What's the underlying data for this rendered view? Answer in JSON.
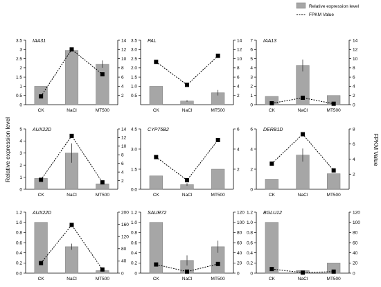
{
  "figure": {
    "left_axis_label": "Relative expression level",
    "right_axis_label": "FPKM Value",
    "legend": [
      {
        "label": "Relative expression level",
        "kind": "bar"
      },
      {
        "label": "FPKM Value",
        "kind": "dotted-line"
      }
    ],
    "colors": {
      "bar": "#a6a6a6",
      "bar_stroke": "#7f7f7f",
      "marker": "#000000",
      "axis": "#000000"
    }
  },
  "chart_data": [
    {
      "type": "bar",
      "title": "IAA31",
      "categories": [
        "CK",
        "NaCl",
        "MT500"
      ],
      "series": [
        {
          "name": "Relative expression level",
          "values": [
            1.0,
            2.95,
            2.2
          ],
          "errors": [
            0,
            0,
            0.2
          ]
        },
        {
          "name": "FPKM Value",
          "axis": "right",
          "values": [
            1.8,
            12.0,
            6.6
          ]
        }
      ],
      "ylim": [
        0,
        3.5
      ],
      "yticks": [
        "0",
        "0.5",
        "1",
        "1.5",
        "2",
        "2.5",
        "3",
        "3.5"
      ],
      "y2lim": [
        0,
        14
      ],
      "y2ticks": [
        "2",
        "4",
        "6",
        "8",
        "10",
        "12",
        "14"
      ]
    },
    {
      "type": "bar",
      "title": "PAL",
      "categories": [
        "CK",
        "NaCl",
        "MT500"
      ],
      "series": [
        {
          "name": "Relative expression level",
          "values": [
            1.0,
            0.2,
            0.65
          ],
          "errors": [
            0,
            0.05,
            0.15
          ]
        },
        {
          "name": "FPKM Value",
          "axis": "right",
          "values": [
            9.3,
            4.3,
            10.6
          ]
        }
      ],
      "ylim": [
        0,
        3.5
      ],
      "yticks": [
        "0.5",
        "1.0",
        "1.5",
        "2.0",
        "2.5",
        "3.0",
        "3.5"
      ],
      "y2lim": [
        0,
        14
      ],
      "y2ticks": [
        "2",
        "4",
        "6",
        "8",
        "10",
        "12",
        "14"
      ]
    },
    {
      "type": "bar",
      "title": "IAA13",
      "categories": [
        "CK",
        "NaCl",
        "MT500"
      ],
      "series": [
        {
          "name": "Relative expression level",
          "values": [
            0.9,
            4.25,
            1.0
          ],
          "errors": [
            0,
            0.65,
            0
          ]
        },
        {
          "name": "FPKM Value",
          "axis": "right",
          "values": [
            0.3,
            1.5,
            0.2
          ]
        }
      ],
      "ylim": [
        0,
        7
      ],
      "yticks": [
        "0",
        "1",
        "2",
        "3",
        "4",
        "5",
        "6",
        "7"
      ],
      "y2lim": [
        0,
        14
      ],
      "y2ticks": [
        "0",
        "2",
        "4",
        "6",
        "8",
        "10",
        "12",
        "14"
      ]
    },
    {
      "type": "bar",
      "title": "AUX22D",
      "categories": [
        "CK",
        "NaCl",
        "MT500"
      ],
      "series": [
        {
          "name": "Relative expression level",
          "values": [
            0.9,
            3.0,
            0.45
          ],
          "errors": [
            0,
            0.8,
            0.05
          ]
        },
        {
          "name": "FPKM Value",
          "axis": "right",
          "values": [
            2.2,
            12.4,
            1.6
          ]
        }
      ],
      "ylim": [
        0,
        5
      ],
      "yticks": [
        "0",
        "1",
        "2",
        "3",
        "4",
        "5"
      ],
      "y2lim": [
        0,
        14
      ],
      "y2ticks": [
        "2",
        "4",
        "6",
        "8",
        "10",
        "12",
        "14"
      ]
    },
    {
      "type": "bar",
      "title": "CYP75B2",
      "categories": [
        "CK",
        "NaCl",
        "MT500"
      ],
      "series": [
        {
          "name": "Relative expression level",
          "values": [
            1.0,
            0.35,
            1.5
          ],
          "errors": [
            0,
            0.1,
            0
          ]
        },
        {
          "name": "FPKM Value",
          "axis": "right",
          "values": [
            3.2,
            0.9,
            4.9
          ]
        }
      ],
      "ylim": [
        0,
        4.5
      ],
      "yticks": [
        "0.0",
        "1.5",
        "3.0",
        "4.5"
      ],
      "y2lim": [
        0,
        6
      ],
      "y2ticks": [
        "2",
        "4",
        "6"
      ]
    },
    {
      "type": "bar",
      "title": "DERB1D",
      "categories": [
        "CK",
        "NaCl",
        "MT500"
      ],
      "series": [
        {
          "name": "Relative expression level",
          "values": [
            1.0,
            3.4,
            1.55
          ],
          "errors": [
            0,
            0.65,
            0
          ]
        },
        {
          "name": "FPKM Value",
          "axis": "right",
          "values": [
            3.4,
            7.3,
            2.5
          ]
        }
      ],
      "ylim": [
        0,
        6
      ],
      "yticks": [
        "0",
        "2",
        "4",
        "6"
      ],
      "y2lim": [
        0,
        8
      ],
      "y2ticks": [
        "2",
        "4",
        "6",
        "8"
      ]
    },
    {
      "type": "bar",
      "title": "AUX22D",
      "categories": [
        "CK",
        "NaCl",
        "MT500"
      ],
      "series": [
        {
          "name": "Relative expression level",
          "values": [
            1.0,
            0.52,
            0.05
          ],
          "errors": [
            0,
            0.06,
            0.02
          ]
        },
        {
          "name": "FPKM Value",
          "axis": "right",
          "values": [
            33,
            158,
            12
          ]
        }
      ],
      "ylim": [
        0,
        1.2
      ],
      "yticks": [
        "0.0",
        "0.2",
        "0.4",
        "0.6",
        "0.8",
        "1.0",
        "1.2"
      ],
      "y2lim": [
        0,
        200
      ],
      "y2ticks": [
        "0",
        "40",
        "80",
        "120",
        "160",
        "200"
      ]
    },
    {
      "type": "bar",
      "title": "SAUR72",
      "categories": [
        "CK",
        "NaCl",
        "MT500"
      ],
      "series": [
        {
          "name": "Relative expression level",
          "values": [
            1.0,
            0.25,
            0.52
          ],
          "errors": [
            0,
            0.1,
            0.12
          ]
        },
        {
          "name": "FPKM Value",
          "axis": "right",
          "values": [
            17,
            3,
            18
          ]
        }
      ],
      "ylim": [
        0,
        1.2
      ],
      "yticks": [
        "0",
        "0.2",
        "0.4",
        "0.6",
        "0.8",
        "1.0",
        "1.2"
      ],
      "y2lim": [
        0,
        120
      ],
      "y2ticks": [
        "0",
        "20",
        "40",
        "60",
        "80",
        "100",
        "120"
      ]
    },
    {
      "type": "bar",
      "title": "BGLU12",
      "categories": [
        "CK",
        "NaCl",
        "MT500"
      ],
      "series": [
        {
          "name": "Relative expression level",
          "values": [
            1.0,
            0.05,
            0.2
          ],
          "errors": [
            0,
            0,
            0
          ]
        },
        {
          "name": "FPKM Value",
          "axis": "right",
          "values": [
            8,
            1,
            3
          ]
        }
      ],
      "ylim": [
        0,
        1.2
      ],
      "yticks": [
        "0",
        "0.2",
        "0.4",
        "0.6",
        "0.8",
        "1.0",
        "1.2"
      ],
      "y2lim": [
        0,
        120
      ],
      "y2ticks": [
        "0",
        "20",
        "40",
        "60",
        "80",
        "100",
        "120"
      ]
    }
  ]
}
